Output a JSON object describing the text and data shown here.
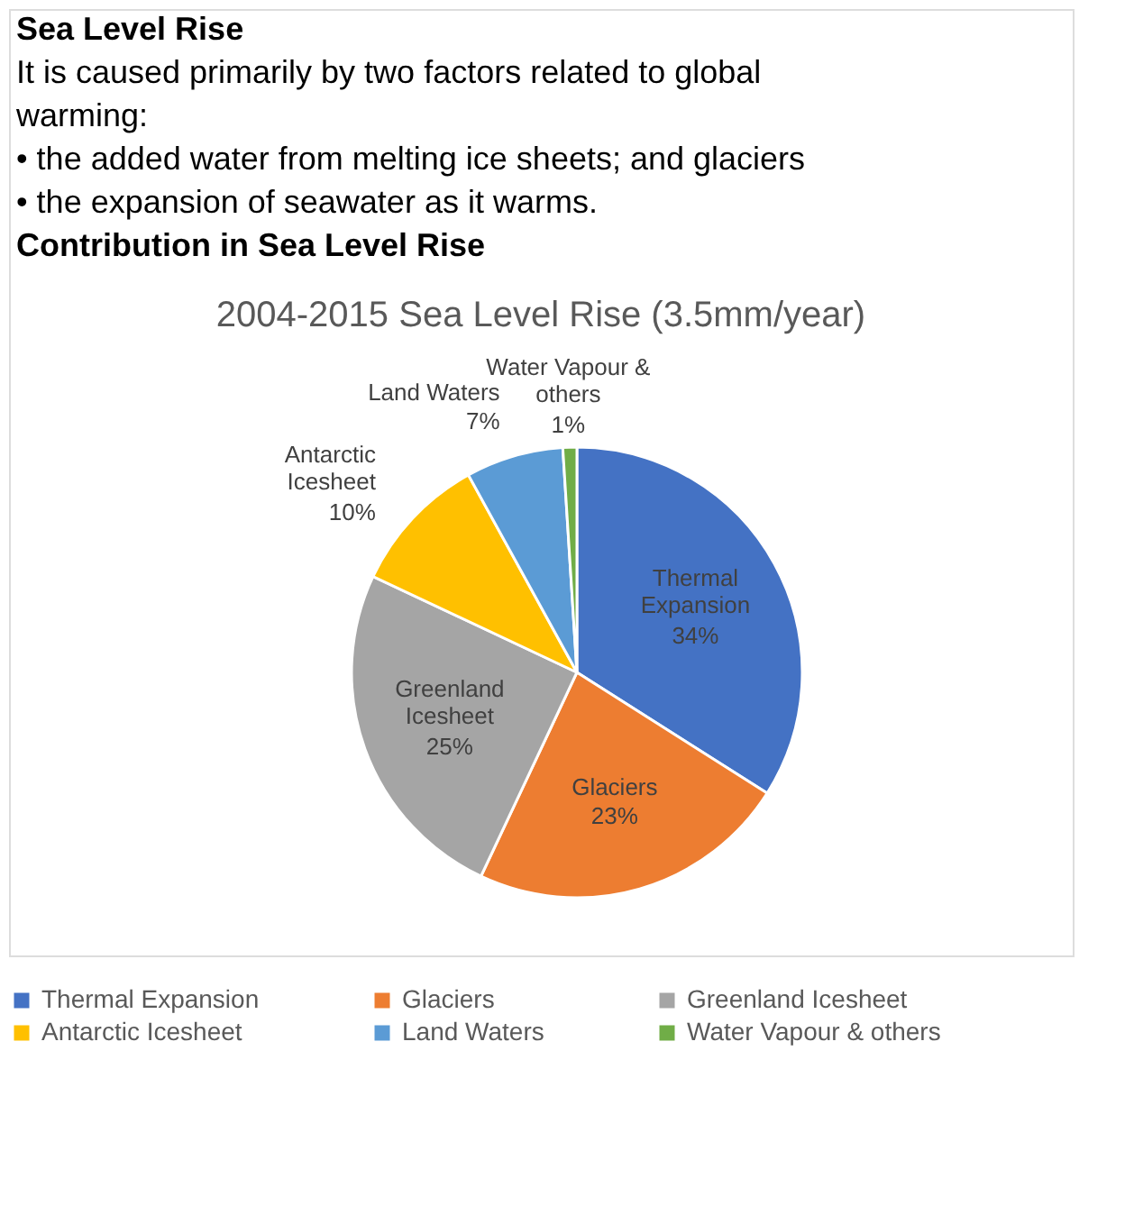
{
  "chart_data": {
    "type": "pie",
    "title": "2004-2015 Sea Level Rise (3.5mm/year)",
    "annotations": [
      "Sea Level Rise",
      "It is caused primarily by two factors related to global warming:",
      "• the added water from melting ice sheets; and glaciers",
      "• the expansion of seawater as it warms.",
      "Contribution in Sea Level Rise"
    ],
    "categories": [
      "Thermal Expansion",
      "Glaciers",
      "Greenland Icesheet",
      "Antarctic Icesheet",
      "Land Waters",
      "Water Vapour & others"
    ],
    "values": [
      34,
      23,
      25,
      10,
      7,
      1
    ],
    "colors": [
      "#4472c4",
      "#ed7d31",
      "#a5a5a5",
      "#ffc000",
      "#5b9bd5",
      "#70ad47"
    ],
    "value_labels": [
      "34%",
      "23%",
      "25%",
      "10%",
      "7%",
      "1%"
    ],
    "legend": "bottom"
  }
}
